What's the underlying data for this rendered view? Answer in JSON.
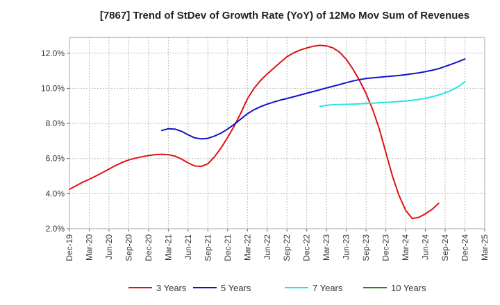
{
  "chart_data": {
    "type": "line",
    "title": "[7867]  Trend of StDev of Growth Rate (YoY) of 12Mo Mov Sum of Revenues",
    "xlabel": "",
    "ylabel": "",
    "x_tick_labels": [
      "Dec-19",
      "Mar-20",
      "Jun-20",
      "Sep-20",
      "Dec-20",
      "Mar-21",
      "Jun-21",
      "Sep-21",
      "Dec-21",
      "Mar-22",
      "Jun-22",
      "Sep-22",
      "Dec-22",
      "Mar-23",
      "Jun-23",
      "Sep-23",
      "Dec-23",
      "Mar-24",
      "Jun-24",
      "Sep-24",
      "Dec-24",
      "Mar-25"
    ],
    "y_tick_labels": [
      "2.0%",
      "4.0%",
      "6.0%",
      "8.0%",
      "10.0%",
      "12.0%"
    ],
    "y_ticks": [
      2,
      4,
      6,
      8,
      10,
      12
    ],
    "ylim": [
      2.0,
      12.9
    ],
    "x_range_months": [
      0,
      63
    ],
    "grid": true,
    "legend_position": "bottom",
    "series": [
      {
        "name": "3 Years",
        "color": "#dd1111",
        "x": [
          0,
          1,
          2,
          3,
          4,
          5,
          6,
          7,
          8,
          9,
          10,
          11,
          12,
          13,
          14,
          15,
          16,
          17,
          18,
          19,
          20,
          21,
          22,
          23,
          24,
          25,
          26,
          27,
          28,
          29,
          30,
          31,
          32,
          33,
          34,
          35,
          36,
          37,
          38,
          39,
          40,
          41,
          42,
          43,
          44,
          45,
          46,
          47,
          48,
          49,
          50,
          51,
          52,
          53,
          54,
          55,
          56,
          57,
          58,
          59,
          60
        ],
        "values": [
          4.25,
          4.45,
          4.65,
          4.82,
          5.0,
          5.2,
          5.4,
          5.6,
          5.78,
          5.92,
          6.02,
          6.1,
          6.17,
          6.22,
          6.24,
          6.22,
          6.14,
          5.97,
          5.75,
          5.58,
          5.55,
          5.7,
          6.1,
          6.6,
          7.2,
          7.85,
          8.6,
          9.4,
          10.0,
          10.45,
          10.82,
          11.15,
          11.48,
          11.8,
          12.02,
          12.18,
          12.3,
          12.4,
          12.45,
          12.42,
          12.3,
          12.05,
          11.65,
          11.1,
          10.45,
          9.7,
          8.8,
          7.7,
          6.35,
          5.0,
          3.9,
          3.05,
          2.58,
          2.65,
          2.85,
          3.1,
          3.45,
          null,
          null,
          null,
          null
        ]
      },
      {
        "name": "5 Years",
        "color": "#1111cc",
        "x": [
          14,
          15,
          16,
          17,
          18,
          19,
          20,
          21,
          22,
          23,
          24,
          25,
          26,
          27,
          28,
          29,
          30,
          31,
          32,
          33,
          34,
          35,
          36,
          37,
          38,
          39,
          40,
          41,
          42,
          43,
          44,
          45,
          46,
          47,
          48,
          49,
          50,
          51,
          52,
          53,
          54,
          55,
          56,
          57,
          58,
          59,
          60
        ],
        "values": [
          7.6,
          7.7,
          7.68,
          7.55,
          7.35,
          7.18,
          7.12,
          7.15,
          7.28,
          7.45,
          7.68,
          7.95,
          8.25,
          8.55,
          8.78,
          8.96,
          9.1,
          9.22,
          9.33,
          9.42,
          9.52,
          9.62,
          9.72,
          9.82,
          9.92,
          10.02,
          10.12,
          10.22,
          10.32,
          10.42,
          10.5,
          10.56,
          10.6,
          10.63,
          10.67,
          10.7,
          10.73,
          10.78,
          10.83,
          10.88,
          10.95,
          11.03,
          11.12,
          11.25,
          11.38,
          11.52,
          11.67
        ]
      },
      {
        "name": "7 Years",
        "color": "#22e5e5",
        "x": [
          38,
          39,
          40,
          41,
          42,
          43,
          44,
          45,
          46,
          47,
          48,
          49,
          50,
          51,
          52,
          53,
          54,
          55,
          56,
          57,
          58,
          59,
          60
        ],
        "values": [
          8.97,
          9.03,
          9.07,
          9.08,
          9.09,
          9.1,
          9.12,
          9.14,
          9.16,
          9.18,
          9.2,
          9.22,
          9.25,
          9.28,
          9.32,
          9.37,
          9.44,
          9.52,
          9.62,
          9.75,
          9.9,
          10.1,
          10.38
        ]
      },
      {
        "name": "10 Years",
        "color": "#228822",
        "x": [],
        "values": []
      }
    ]
  }
}
